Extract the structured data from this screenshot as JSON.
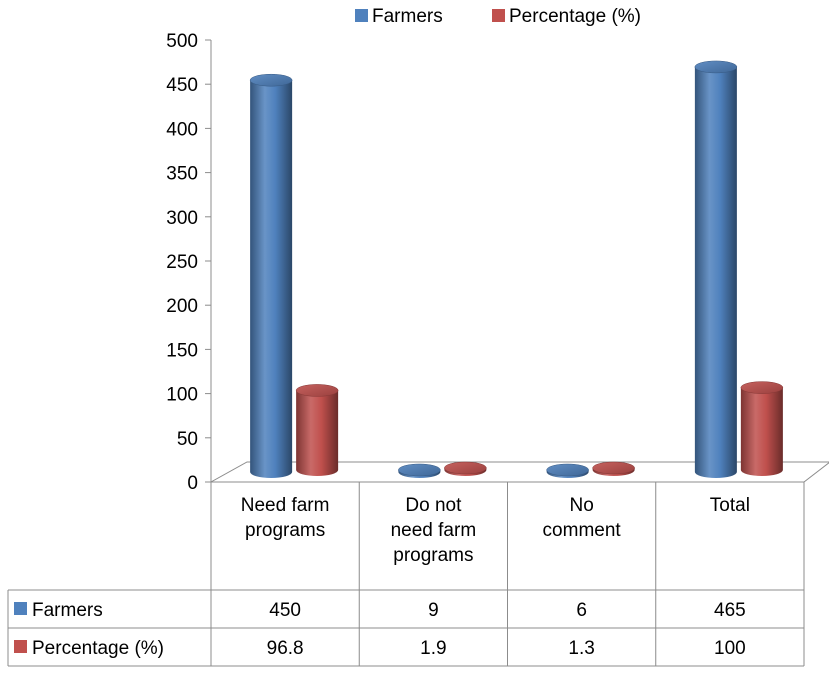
{
  "chart_data": {
    "type": "bar",
    "title": "",
    "xlabel": "",
    "ylabel": "",
    "ylim": [
      0,
      500
    ],
    "ytick_step": 50,
    "grid": false,
    "legend_position": "top",
    "style": "3d-cylinder-with-data-table",
    "categories": [
      [
        "Need farm",
        "programs"
      ],
      [
        "Do not",
        "need farm",
        "programs"
      ],
      [
        "No",
        "comment"
      ],
      [
        "Total"
      ]
    ],
    "series": [
      {
        "name": "Farmers",
        "color": "#4F81BD",
        "values": [
          450,
          9,
          6,
          465
        ],
        "labels": [
          "450",
          "9",
          "6",
          "465"
        ]
      },
      {
        "name": "Percentage (%)",
        "color": "#C0504D",
        "values": [
          96.8,
          1.9,
          1.3,
          100
        ],
        "labels": [
          "96.8",
          "1.9",
          "1.3",
          "100"
        ]
      }
    ]
  }
}
